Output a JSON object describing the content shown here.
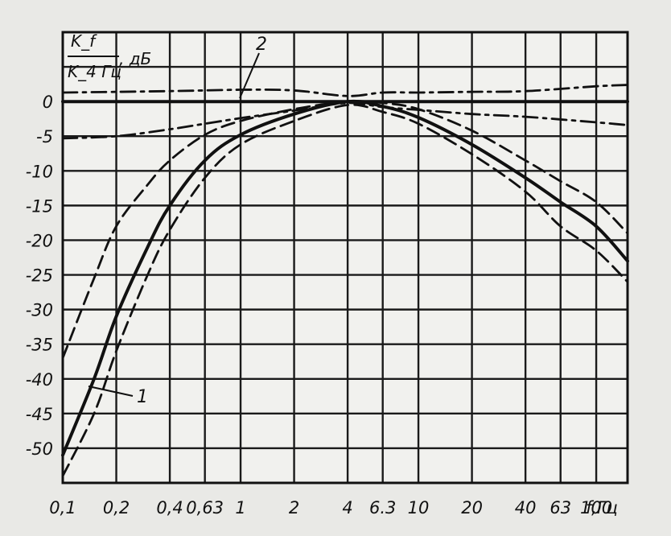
{
  "chart_data": {
    "type": "line",
    "ylabel_fraction": {
      "numerator": "K_f",
      "denominator": "K_4 Гц",
      "unit": ", дБ"
    },
    "xlabel": "f,Гц",
    "x_scale": "log",
    "x_ticks": [
      {
        "value": 0.1,
        "label": "0,1"
      },
      {
        "value": 0.2,
        "label": "0,2"
      },
      {
        "value": 0.4,
        "label": "0,4"
      },
      {
        "value": 0.63,
        "label": "0,63"
      },
      {
        "value": 1,
        "label": "1"
      },
      {
        "value": 2,
        "label": "2"
      },
      {
        "value": 4,
        "label": "4"
      },
      {
        "value": 6.3,
        "label": "6.3"
      },
      {
        "value": 10,
        "label": "10"
      },
      {
        "value": 20,
        "label": "20"
      },
      {
        "value": 40,
        "label": "40"
      },
      {
        "value": 63,
        "label": "63"
      },
      {
        "value": 100,
        "label": "100"
      }
    ],
    "y_ticks": [
      {
        "value": 0,
        "label": "0"
      },
      {
        "value": -5,
        "label": "-5"
      },
      {
        "value": -10,
        "label": "-10"
      },
      {
        "value": -15,
        "label": "-15"
      },
      {
        "value": -20,
        "label": "-20"
      },
      {
        "value": -25,
        "label": "-25"
      },
      {
        "value": -30,
        "label": "-30"
      },
      {
        "value": -35,
        "label": "-35"
      },
      {
        "value": -40,
        "label": "-40"
      },
      {
        "value": -45,
        "label": "-45"
      },
      {
        "value": -50,
        "label": "-50"
      }
    ],
    "xlim": [
      0.1,
      150
    ],
    "ylim": [
      -55,
      10
    ],
    "grid": true,
    "curve_labels": [
      {
        "text": "1",
        "series": "curve-1"
      },
      {
        "text": "2",
        "series": "curve-2"
      }
    ],
    "series": [
      {
        "id": "curve-1",
        "style": "solid",
        "x": [
          0.1,
          0.15,
          0.2,
          0.3,
          0.4,
          0.63,
          1,
          2,
          4,
          6.3,
          10,
          20,
          40,
          63,
          100,
          150
        ],
        "y": [
          -51,
          -40,
          -31,
          -21,
          -15,
          -8.5,
          -4.8,
          -1.8,
          0,
          -0.7,
          -2.3,
          -6.2,
          -11,
          -14.5,
          -18,
          -23
        ]
      },
      {
        "id": "curve-1-upper-bound",
        "style": "dashed",
        "x": [
          0.1,
          0.15,
          0.2,
          0.3,
          0.4,
          0.63,
          1,
          2,
          4,
          6.3,
          10,
          20,
          40,
          63,
          100,
          150
        ],
        "y": [
          -37,
          -25.5,
          -18,
          -12,
          -8.5,
          -4.8,
          -2.8,
          -1.1,
          0,
          -0.2,
          -1.1,
          -4.2,
          -8.5,
          -11.5,
          -14.5,
          -19
        ]
      },
      {
        "id": "curve-1-lower-bound",
        "style": "dashed",
        "x": [
          0.1,
          0.15,
          0.2,
          0.3,
          0.4,
          0.63,
          1,
          2,
          4,
          6.3,
          10,
          20,
          40,
          63,
          100,
          150
        ],
        "y": [
          -54,
          -45,
          -36,
          -25,
          -18.5,
          -11,
          -6.2,
          -2.8,
          -0.5,
          -1.5,
          -3.2,
          -7.6,
          -13,
          -18,
          -21.5,
          -26
        ]
      },
      {
        "id": "curve-2",
        "style": "solid-flat",
        "x": [
          0.1,
          0.4,
          1,
          4,
          10,
          40,
          100,
          150
        ],
        "y": [
          0,
          0,
          0,
          0,
          0,
          0,
          0,
          0
        ]
      },
      {
        "id": "curve-2-upper-bound",
        "style": "dash-dot",
        "x": [
          0.1,
          0.4,
          1,
          2,
          4,
          6.3,
          10,
          20,
          40,
          100,
          150
        ],
        "y": [
          1.3,
          1.5,
          1.7,
          1.6,
          0.8,
          1.3,
          1.3,
          1.4,
          1.5,
          2.2,
          2.4
        ]
      },
      {
        "id": "curve-2-lower-bound",
        "style": "dash-dot",
        "x": [
          0.1,
          0.2,
          0.4,
          0.63,
          1,
          2,
          4,
          6.3,
          10,
          20,
          40,
          100,
          150
        ],
        "y": [
          -5.3,
          -5,
          -4,
          -3.2,
          -2.4,
          -1.3,
          -0.2,
          -0.8,
          -1.2,
          -1.8,
          -2.2,
          -3,
          -3.4
        ]
      }
    ]
  }
}
